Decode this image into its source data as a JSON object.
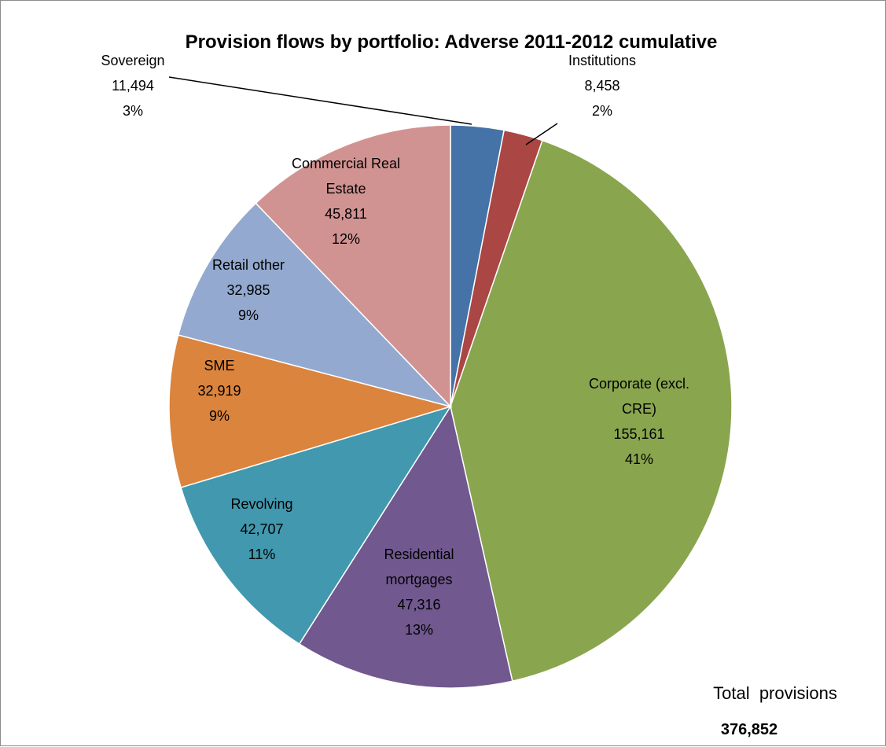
{
  "chart_data": {
    "type": "pie",
    "title": "Provision flows by portfolio: Adverse 2011-2012 cumulative",
    "slices": [
      {
        "name": "Sovereign",
        "value": 11494,
        "value_label": "11,494",
        "pct": "3%",
        "color": "#4572A7",
        "label_lines": [
          "Sovereign"
        ]
      },
      {
        "name": "Institutions",
        "value": 8458,
        "value_label": "8,458",
        "pct": "2%",
        "color": "#AA4643",
        "label_lines": [
          "Institutions"
        ]
      },
      {
        "name": "Corporate (excl. CRE)",
        "value": 155161,
        "value_label": "155,161",
        "pct": "41%",
        "color": "#89A54E",
        "label_lines": [
          "Corporate (excl.",
          "CRE)"
        ]
      },
      {
        "name": "Residential mortgages",
        "value": 47316,
        "value_label": "47,316",
        "pct": "13%",
        "color": "#71588F",
        "label_lines": [
          "Residential",
          "mortgages"
        ]
      },
      {
        "name": "Revolving",
        "value": 42707,
        "value_label": "42,707",
        "pct": "11%",
        "color": "#4198AF",
        "label_lines": [
          "Revolving"
        ]
      },
      {
        "name": "SME",
        "value": 32919,
        "value_label": "32,919",
        "pct": "9%",
        "color": "#DB843D",
        "label_lines": [
          "SME"
        ]
      },
      {
        "name": "Retail other",
        "value": 32985,
        "value_label": "32,985",
        "pct": "9%",
        "color": "#93A9CF",
        "label_lines": [
          "Retail other"
        ]
      },
      {
        "name": "Commercial Real Estate",
        "value": 45811,
        "value_label": "45,811",
        "pct": "12%",
        "color": "#D19392",
        "label_lines": [
          "Commercial Real",
          "Estate"
        ]
      }
    ],
    "total_label": "Total  provisions",
    "total_value": "376,852"
  }
}
